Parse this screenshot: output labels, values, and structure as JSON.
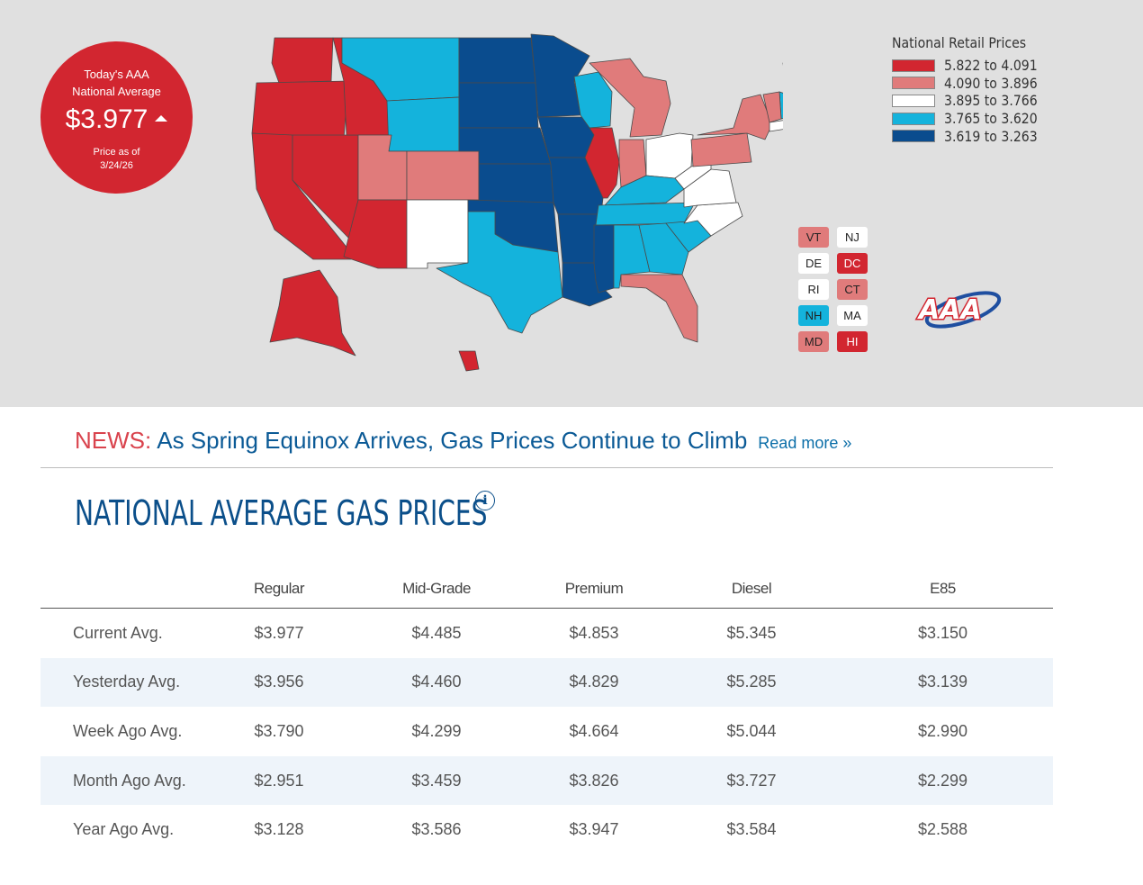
{
  "badge": {
    "line1": "Today's AAA",
    "line2": "National Average",
    "price": "$3.977",
    "trend": "up",
    "asof_label": "Price as of",
    "asof_date": "3/24/26"
  },
  "legend": {
    "title": "National Retail Prices",
    "items": [
      {
        "label": "5.822 to 4.091",
        "color": "#d22630"
      },
      {
        "label": "4.090 to 3.896",
        "color": "#e07b7b"
      },
      {
        "label": "3.895 to 3.766",
        "color": "#ffffff"
      },
      {
        "label": "3.765 to 3.620",
        "color": "#14b3dc"
      },
      {
        "label": "3.619 to 3.263",
        "color": "#0a4c8e"
      }
    ]
  },
  "small_states": [
    {
      "abbr": "VT",
      "tier": 1
    },
    {
      "abbr": "NJ",
      "tier": 2
    },
    {
      "abbr": "DE",
      "tier": 2
    },
    {
      "abbr": "DC",
      "tier": 0
    },
    {
      "abbr": "RI",
      "tier": 2
    },
    {
      "abbr": "CT",
      "tier": 1
    },
    {
      "abbr": "NH",
      "tier": 3
    },
    {
      "abbr": "MA",
      "tier": 2
    },
    {
      "abbr": "MD",
      "tier": 1
    },
    {
      "abbr": "HI",
      "tier": 0
    }
  ],
  "logo": {
    "text": "AAA"
  },
  "news": {
    "label": "NEWS:",
    "headline": "As Spring Equinox Arrives, Gas Prices Continue to Climb",
    "read_more": "Read more »"
  },
  "section": {
    "title": "NATIONAL AVERAGE GAS PRICES",
    "info_icon": "i"
  },
  "table": {
    "columns": [
      "",
      "Regular",
      "Mid-Grade",
      "Premium",
      "Diesel",
      "E85"
    ],
    "rows": [
      {
        "label": "Current Avg.",
        "values": [
          "$3.977",
          "$4.485",
          "$4.853",
          "$5.345",
          "$3.150"
        ]
      },
      {
        "label": "Yesterday Avg.",
        "values": [
          "$3.956",
          "$4.460",
          "$4.829",
          "$5.285",
          "$3.139"
        ]
      },
      {
        "label": "Week Ago Avg.",
        "values": [
          "$3.790",
          "$4.299",
          "$4.664",
          "$5.044",
          "$2.990"
        ]
      },
      {
        "label": "Month Ago Avg.",
        "values": [
          "$2.951",
          "$3.459",
          "$3.826",
          "$3.727",
          "$2.299"
        ]
      },
      {
        "label": "Year Ago Avg.",
        "values": [
          "$3.128",
          "$3.586",
          "$3.947",
          "$3.584",
          "$2.588"
        ]
      }
    ]
  }
}
